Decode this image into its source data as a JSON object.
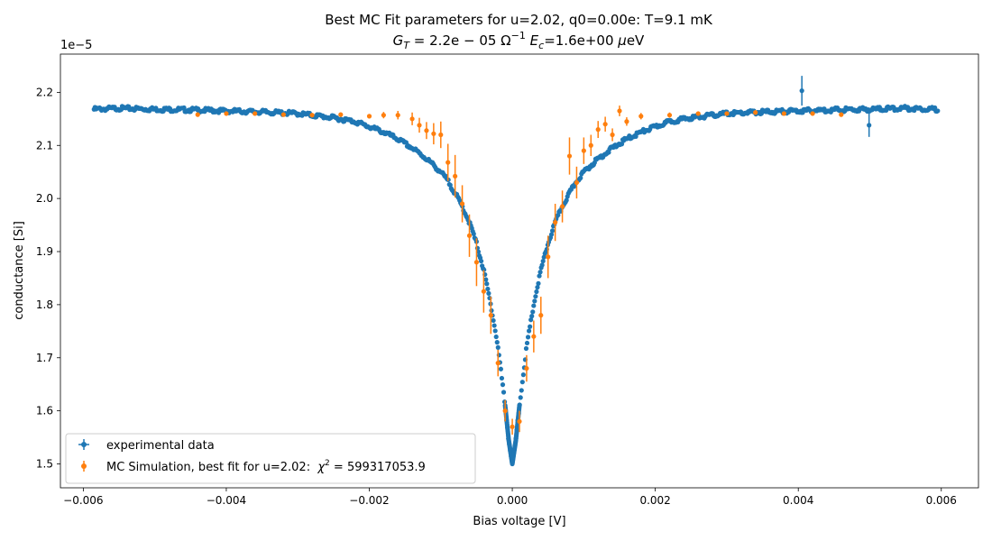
{
  "chart_data": {
    "type": "scatter",
    "title_line1": "Best MC Fit parameters for u=2.02, q0=0.00e:  T=9.1 mK",
    "title_line2": {
      "g_symbol": "G",
      "g_sub": "T",
      "g_value": " = 2.2e − 05 Ω",
      "g_exp": "−1",
      "e_symbol": " E",
      "e_sub": "c",
      "e_value": "=1.6e+00 ",
      "mu": "μ",
      "unit": "eV"
    },
    "xlabel": "Bias voltage [V]",
    "ylabel": "conductance [Si]",
    "y_offset_text": "1e−5",
    "xlim": [
      -0.00632,
      0.00652
    ],
    "ylim": [
      1.455,
      2.272
    ],
    "x_ticks": [
      -0.006,
      -0.004,
      -0.002,
      0,
      0.002,
      0.004,
      0.006
    ],
    "x_tick_labels": [
      "−0.006",
      "−0.004",
      "−0.002",
      "0.000",
      "0.002",
      "0.004",
      "0.006"
    ],
    "y_ticks": [
      1.5,
      1.6,
      1.7,
      1.8,
      1.9,
      2.0,
      2.1,
      2.2
    ],
    "y_tick_labels": [
      "1.5",
      "1.6",
      "1.7",
      "1.8",
      "1.9",
      "2.0",
      "2.1",
      "2.2"
    ],
    "y_unit_scale": "1e-5",
    "grid": false,
    "legend_position": "bottom-left",
    "legend": {
      "experimental_label": "experimental data",
      "simulation_label": "MC Simulation, best fit for u=2.02:  ",
      "chi_symbol": "χ",
      "chi_exp": "2",
      "chi_value": " = 599317053.9"
    },
    "colors": {
      "experimental": "#1f77b4",
      "simulation": "#ff7f0e"
    },
    "series": [
      {
        "name": "experimental data",
        "color": "#1f77b4",
        "points": [
          [
            -0.00585,
            2.168
          ],
          [
            -0.0055,
            2.17
          ],
          [
            -0.005,
            2.168
          ],
          [
            -0.0045,
            2.167
          ],
          [
            -0.004,
            2.165
          ],
          [
            -0.0035,
            2.163
          ],
          [
            -0.003,
            2.16
          ],
          [
            -0.0025,
            2.152
          ],
          [
            -0.0022,
            2.145
          ],
          [
            -0.002,
            2.135
          ],
          [
            -0.0018,
            2.125
          ],
          [
            -0.0016,
            2.112
          ],
          [
            -0.0014,
            2.095
          ],
          [
            -0.0012,
            2.075
          ],
          [
            -0.001,
            2.05
          ],
          [
            -0.0009,
            2.033
          ],
          [
            -0.0008,
            2.01
          ],
          [
            -0.0007,
            1.985
          ],
          [
            -0.0006,
            1.955
          ],
          [
            -0.0005,
            1.915
          ],
          [
            -0.0004,
            1.865
          ],
          [
            -0.0003,
            1.8
          ],
          [
            -0.0002,
            1.72
          ],
          [
            -0.0001,
            1.61
          ],
          [
            -5e-05,
            1.545
          ],
          [
            0,
            1.5
          ],
          [
            5e-05,
            1.545
          ],
          [
            0.0001,
            1.61
          ],
          [
            0.0002,
            1.72
          ],
          [
            0.0003,
            1.8
          ],
          [
            0.0004,
            1.865
          ],
          [
            0.0005,
            1.915
          ],
          [
            0.0006,
            1.955
          ],
          [
            0.0007,
            1.985
          ],
          [
            0.0008,
            2.01
          ],
          [
            0.0009,
            2.033
          ],
          [
            0.001,
            2.05
          ],
          [
            0.0012,
            2.075
          ],
          [
            0.0014,
            2.095
          ],
          [
            0.0016,
            2.112
          ],
          [
            0.0018,
            2.125
          ],
          [
            0.002,
            2.135
          ],
          [
            0.0022,
            2.145
          ],
          [
            0.0025,
            2.152
          ],
          [
            0.003,
            2.16
          ],
          [
            0.0035,
            2.163
          ],
          [
            0.004,
            2.165
          ],
          [
            0.0045,
            2.167
          ],
          [
            0.005,
            2.168
          ],
          [
            0.0055,
            2.17
          ],
          [
            0.00595,
            2.168
          ]
        ],
        "outliers": [
          {
            "x": 0.00405,
            "y": 2.203,
            "err": 0.028
          },
          {
            "x": 0.00499,
            "y": 2.138,
            "err": 0.022
          }
        ]
      },
      {
        "name": "MC Simulation, best fit for u=2.02",
        "color": "#ff7f0e",
        "points": [
          [
            -0.0044,
            2.158,
            0.004
          ],
          [
            -0.004,
            2.16,
            0.004
          ],
          [
            -0.0036,
            2.16,
            0.004
          ],
          [
            -0.0032,
            2.158,
            0.004
          ],
          [
            -0.0028,
            2.157,
            0.004
          ],
          [
            -0.0024,
            2.158,
            0.004
          ],
          [
            -0.002,
            2.155,
            0.004
          ],
          [
            -0.0018,
            2.157,
            0.006
          ],
          [
            -0.0016,
            2.157,
            0.008
          ],
          [
            -0.0014,
            2.15,
            0.012
          ],
          [
            -0.0013,
            2.138,
            0.014
          ],
          [
            -0.0012,
            2.128,
            0.016
          ],
          [
            -0.0011,
            2.122,
            0.02
          ],
          [
            -0.001,
            2.12,
            0.025
          ],
          [
            -0.0009,
            2.068,
            0.035
          ],
          [
            -0.0008,
            2.042,
            0.04
          ],
          [
            -0.0007,
            1.99,
            0.035
          ],
          [
            -0.0006,
            1.93,
            0.04
          ],
          [
            -0.0005,
            1.88,
            0.045
          ],
          [
            -0.0004,
            1.825,
            0.04
          ],
          [
            -0.0003,
            1.78,
            0.035
          ],
          [
            -0.0002,
            1.69,
            0.025
          ],
          [
            -0.0001,
            1.6,
            0.02
          ],
          [
            0,
            1.57,
            0.015
          ],
          [
            0.0001,
            1.58,
            0.02
          ],
          [
            0.0002,
            1.68,
            0.025
          ],
          [
            0.0003,
            1.74,
            0.03
          ],
          [
            0.0004,
            1.78,
            0.035
          ],
          [
            0.0005,
            1.89,
            0.04
          ],
          [
            0.0006,
            1.955,
            0.035
          ],
          [
            0.0007,
            1.985,
            0.03
          ],
          [
            0.0008,
            2.08,
            0.035
          ],
          [
            0.0009,
            2.03,
            0.03
          ],
          [
            0.001,
            2.09,
            0.025
          ],
          [
            0.0011,
            2.1,
            0.02
          ],
          [
            0.0012,
            2.13,
            0.016
          ],
          [
            0.0013,
            2.14,
            0.014
          ],
          [
            0.0014,
            2.12,
            0.012
          ],
          [
            0.0015,
            2.165,
            0.01
          ],
          [
            0.0016,
            2.145,
            0.008
          ],
          [
            0.0018,
            2.155,
            0.006
          ],
          [
            0.0022,
            2.157,
            0.005
          ],
          [
            0.0026,
            2.16,
            0.004
          ],
          [
            0.003,
            2.16,
            0.004
          ],
          [
            0.0034,
            2.162,
            0.004
          ],
          [
            0.0038,
            2.16,
            0.004
          ],
          [
            0.0042,
            2.16,
            0.004
          ],
          [
            0.0046,
            2.158,
            0.004
          ]
        ]
      }
    ]
  }
}
